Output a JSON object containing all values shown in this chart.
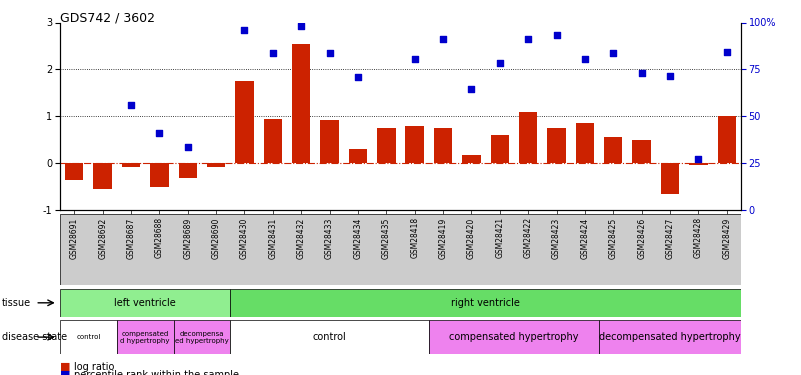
{
  "title": "GDS742 / 3602",
  "samples": [
    "GSM28691",
    "GSM28692",
    "GSM28687",
    "GSM28688",
    "GSM28689",
    "GSM28690",
    "GSM28430",
    "GSM28431",
    "GSM28432",
    "GSM28433",
    "GSM28434",
    "GSM28435",
    "GSM28418",
    "GSM28419",
    "GSM28420",
    "GSM28421",
    "GSM28422",
    "GSM28423",
    "GSM28424",
    "GSM28425",
    "GSM28426",
    "GSM28427",
    "GSM28428",
    "GSM28429"
  ],
  "log_ratio": [
    -0.35,
    -0.55,
    -0.08,
    -0.5,
    -0.32,
    -0.08,
    1.75,
    0.95,
    2.55,
    0.93,
    0.3,
    0.75,
    0.8,
    0.75,
    0.17,
    0.6,
    1.1,
    0.75,
    0.85,
    0.55,
    0.5,
    -0.65,
    -0.05,
    1.0
  ],
  "percentile_left": [
    null,
    null,
    1.25,
    0.65,
    0.35,
    null,
    2.85,
    2.35,
    2.93,
    2.35,
    1.83,
    null,
    2.22,
    2.65,
    1.58,
    2.13,
    2.65,
    2.73,
    2.22,
    2.35,
    1.93,
    1.85,
    0.08,
    2.38
  ],
  "tissue_groups": [
    {
      "label": "left ventricle",
      "start": 0,
      "end": 6,
      "color": "#90ee90"
    },
    {
      "label": "right ventricle",
      "start": 6,
      "end": 24,
      "color": "#66dd66"
    }
  ],
  "disease_groups": [
    {
      "label": "control",
      "start": 0,
      "end": 2,
      "color": "#ffffff"
    },
    {
      "label": "compensated\nd hypertrophy",
      "start": 2,
      "end": 4,
      "color": "#ee82ee"
    },
    {
      "label": "decompensa\ned hypertrophy",
      "start": 4,
      "end": 6,
      "color": "#ee82ee"
    },
    {
      "label": "control",
      "start": 6,
      "end": 13,
      "color": "#ffffff"
    },
    {
      "label": "compensated hypertrophy",
      "start": 13,
      "end": 19,
      "color": "#ee82ee"
    },
    {
      "label": "decompensated hypertrophy",
      "start": 19,
      "end": 24,
      "color": "#ee82ee"
    }
  ],
  "bar_color": "#cc2200",
  "scatter_color": "#0000cc",
  "ylim_left": [
    -1,
    3
  ],
  "yticks_left": [
    -1,
    0,
    1,
    2,
    3
  ],
  "yticks_right_labels": [
    "0",
    "25",
    "50",
    "75",
    "100%"
  ],
  "yticks_right_pos": [
    -1,
    0,
    1,
    2,
    3
  ],
  "hlines": [
    1.0,
    2.0
  ],
  "zero_line_color": "#cc2200",
  "bar_width": 0.65
}
